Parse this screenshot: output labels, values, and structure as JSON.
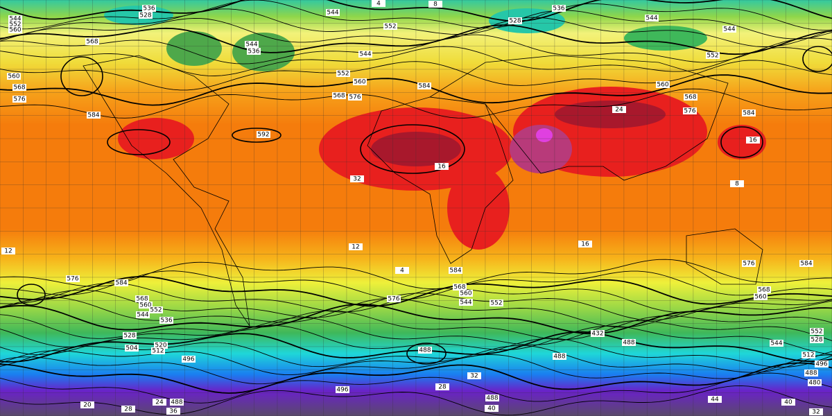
{
  "map": {
    "contour_labels": [
      "528",
      "536",
      "544",
      "552",
      "560",
      "568",
      "568",
      "560",
      "576",
      "584",
      "544",
      "536",
      "592",
      "544",
      "552",
      "544",
      "552",
      "560",
      "568",
      "576",
      "584",
      "4",
      "8",
      "536",
      "528",
      "544",
      "544",
      "552",
      "560",
      "568",
      "576",
      "584",
      "24",
      "16",
      "16",
      "32",
      "12",
      "4",
      "584",
      "568",
      "560",
      "544",
      "552",
      "576",
      "584",
      "576",
      "568",
      "560",
      "552",
      "544",
      "536",
      "528",
      "504",
      "520",
      "512",
      "496",
      "488",
      "488",
      "488",
      "432",
      "544",
      "552",
      "528",
      "512",
      "496",
      "488",
      "480",
      "488",
      "496",
      "488",
      "40",
      "32",
      "28",
      "568",
      "560",
      "576",
      "584",
      "16",
      "12",
      "8",
      "44",
      "40",
      "32",
      "28",
      "20",
      "36",
      "24"
    ]
  }
}
